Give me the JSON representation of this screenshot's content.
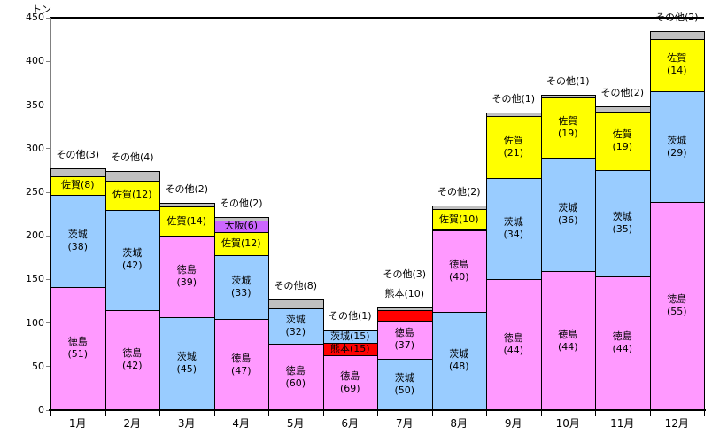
{
  "chart_data": {
    "type": "bar",
    "stacked": true,
    "title": "",
    "unit_label": "トン",
    "xlabel": "",
    "ylabel": "トン",
    "ylim": [
      0,
      450
    ],
    "y_tick_step": 50,
    "grid": false,
    "legend": "none",
    "note": "segment labels show percent share; totals in tons estimated from axis",
    "categories": [
      "1月",
      "2月",
      "3月",
      "4月",
      "5月",
      "6月",
      "7月",
      "8月",
      "9月",
      "10月",
      "11月",
      "12月"
    ],
    "region_colors": {
      "徳島": "#FF99FF",
      "茨城": "#99CCFF",
      "佐賀": "#FFFF00",
      "大阪": "#CC66FF",
      "熊本": "#FF0000",
      "その他": "#C0C0C0"
    },
    "months": [
      {
        "month": "1月",
        "total": 277,
        "segments": [
          {
            "region": "徳島",
            "pct": 51,
            "placement": "two-line"
          },
          {
            "region": "茨城",
            "pct": 38,
            "placement": "two-line"
          },
          {
            "region": "佐賀",
            "pct": 8,
            "placement": "inline"
          },
          {
            "region": "その他",
            "pct": 3,
            "placement": "above"
          }
        ]
      },
      {
        "month": "2月",
        "total": 274,
        "segments": [
          {
            "region": "徳島",
            "pct": 42,
            "placement": "two-line"
          },
          {
            "region": "茨城",
            "pct": 42,
            "placement": "two-line"
          },
          {
            "region": "佐賀",
            "pct": 12,
            "placement": "inline"
          },
          {
            "region": "その他",
            "pct": 4,
            "placement": "above"
          }
        ]
      },
      {
        "month": "3月",
        "total": 238,
        "segments": [
          {
            "region": "茨城",
            "pct": 45,
            "placement": "two-line"
          },
          {
            "region": "徳島",
            "pct": 39,
            "placement": "two-line"
          },
          {
            "region": "佐賀",
            "pct": 14,
            "placement": "inline"
          },
          {
            "region": "その他",
            "pct": 2,
            "placement": "above"
          }
        ]
      },
      {
        "month": "4月",
        "total": 222,
        "segments": [
          {
            "region": "徳島",
            "pct": 47,
            "placement": "two-line"
          },
          {
            "region": "茨城",
            "pct": 33,
            "placement": "two-line"
          },
          {
            "region": "佐賀",
            "pct": 12,
            "placement": "inline"
          },
          {
            "region": "大阪",
            "pct": 6,
            "placement": "inline"
          },
          {
            "region": "その他",
            "pct": 2,
            "placement": "above"
          }
        ]
      },
      {
        "month": "5月",
        "total": 127,
        "segments": [
          {
            "region": "徳島",
            "pct": 60,
            "placement": "two-line"
          },
          {
            "region": "茨城",
            "pct": 32,
            "placement": "two-line"
          },
          {
            "region": "その他",
            "pct": 8,
            "placement": "above"
          }
        ]
      },
      {
        "month": "6月",
        "total": 92,
        "segments": [
          {
            "region": "徳島",
            "pct": 69,
            "placement": "two-line"
          },
          {
            "region": "熊本",
            "pct": 15,
            "placement": "inline"
          },
          {
            "region": "茨城",
            "pct": 15,
            "placement": "inline"
          },
          {
            "region": "その他",
            "pct": 1,
            "placement": "above"
          }
        ]
      },
      {
        "month": "7月",
        "total": 118,
        "segments": [
          {
            "region": "茨城",
            "pct": 50,
            "placement": "two-line"
          },
          {
            "region": "徳島",
            "pct": 37,
            "placement": "two-line"
          },
          {
            "region": "熊本",
            "pct": 10,
            "placement": "above"
          },
          {
            "region": "その他",
            "pct": 3,
            "placement": "above"
          }
        ]
      },
      {
        "month": "8月",
        "total": 235,
        "segments": [
          {
            "region": "茨城",
            "pct": 48,
            "placement": "two-line"
          },
          {
            "region": "徳島",
            "pct": 40,
            "placement": "two-line"
          },
          {
            "region": "佐賀",
            "pct": 10,
            "placement": "inline"
          },
          {
            "region": "その他",
            "pct": 2,
            "placement": "above"
          }
        ]
      },
      {
        "month": "9月",
        "total": 341,
        "segments": [
          {
            "region": "徳島",
            "pct": 44,
            "placement": "two-line"
          },
          {
            "region": "茨城",
            "pct": 34,
            "placement": "two-line"
          },
          {
            "region": "佐賀",
            "pct": 21,
            "placement": "two-line"
          },
          {
            "region": "その他",
            "pct": 1,
            "placement": "above"
          }
        ]
      },
      {
        "month": "10月",
        "total": 362,
        "segments": [
          {
            "region": "徳島",
            "pct": 44,
            "placement": "two-line"
          },
          {
            "region": "茨城",
            "pct": 36,
            "placement": "two-line"
          },
          {
            "region": "佐賀",
            "pct": 19,
            "placement": "two-line"
          },
          {
            "region": "その他",
            "pct": 1,
            "placement": "above"
          }
        ]
      },
      {
        "month": "11月",
        "total": 349,
        "segments": [
          {
            "region": "徳島",
            "pct": 44,
            "placement": "two-line"
          },
          {
            "region": "茨城",
            "pct": 35,
            "placement": "two-line"
          },
          {
            "region": "佐賀",
            "pct": 19,
            "placement": "two-line"
          },
          {
            "region": "その他",
            "pct": 2,
            "placement": "above"
          }
        ]
      },
      {
        "month": "12月",
        "total": 435,
        "segments": [
          {
            "region": "徳島",
            "pct": 55,
            "placement": "two-line"
          },
          {
            "region": "茨城",
            "pct": 29,
            "placement": "two-line"
          },
          {
            "region": "佐賀",
            "pct": 14,
            "placement": "two-line"
          },
          {
            "region": "その他",
            "pct": 2,
            "placement": "above"
          }
        ]
      }
    ]
  }
}
